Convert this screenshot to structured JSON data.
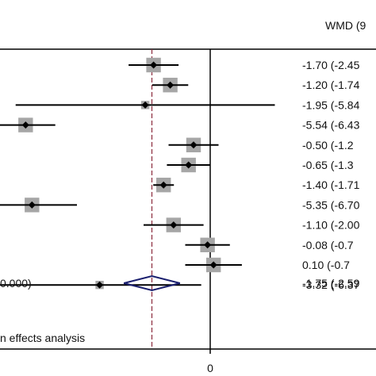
{
  "chart_data": {
    "type": "forest",
    "column_header": "WMD (9",
    "x_axis": {
      "tick_labels": [
        "0"
      ],
      "reference_value": 0,
      "pooled_reference_line": -1.75
    },
    "studies": [
      {
        "wmd": -1.7,
        "ci_lower": -2.45,
        "ci_upper": -0.95,
        "weight": 0.9,
        "label": "-1.70 (-2.45"
      },
      {
        "wmd": -1.2,
        "ci_lower": -1.74,
        "ci_upper": -0.66,
        "weight": 0.9,
        "label": "-1.20 (-1.74"
      },
      {
        "wmd": -1.95,
        "ci_lower": -5.84,
        "ci_upper": 1.94,
        "weight": 0.4,
        "label": "-1.95 (-5.84"
      },
      {
        "wmd": -5.54,
        "ci_lower": -6.43,
        "ci_upper": -4.65,
        "weight": 0.9,
        "label": "-5.54 (-6.43"
      },
      {
        "wmd": -0.5,
        "ci_lower": -1.25,
        "ci_upper": 0.25,
        "weight": 0.9,
        "label": "-0.50 (-1.2"
      },
      {
        "wmd": -0.65,
        "ci_lower": -1.3,
        "ci_upper": 0.0,
        "weight": 0.9,
        "label": "-0.65 (-1.3"
      },
      {
        "wmd": -1.4,
        "ci_lower": -1.71,
        "ci_upper": -1.09,
        "weight": 0.9,
        "label": "-1.40 (-1.71"
      },
      {
        "wmd": -5.35,
        "ci_lower": -6.7,
        "ci_upper": -4.0,
        "weight": 0.9,
        "label": "-5.35 (-6.70"
      },
      {
        "wmd": -1.1,
        "ci_lower": -2.0,
        "ci_upper": -0.2,
        "weight": 0.9,
        "label": "-1.10 (-2.00"
      },
      {
        "wmd": -0.08,
        "ci_lower": -0.75,
        "ci_upper": 0.59,
        "weight": 0.9,
        "label": "-0.08 (-0.7"
      },
      {
        "wmd": 0.1,
        "ci_lower": -0.75,
        "ci_upper": 0.95,
        "weight": 0.9,
        "label": "0.10 (-0.7"
      },
      {
        "wmd": -3.32,
        "ci_lower": -6.37,
        "ci_upper": -0.27,
        "weight": 0.4,
        "label": "-3.32 (-6.37"
      }
    ],
    "overall": {
      "wmd": -1.75,
      "ci_lower": -2.59,
      "ci_upper": -0.91,
      "label": "-1.75 (-2.59",
      "left_label": "0.000)"
    },
    "footer_label": "n effects analysis",
    "colors": {
      "line": "#000000",
      "box": "#a6a6a6",
      "diamond": "#1a1f6e",
      "dashed": "#8b2a3c"
    }
  }
}
